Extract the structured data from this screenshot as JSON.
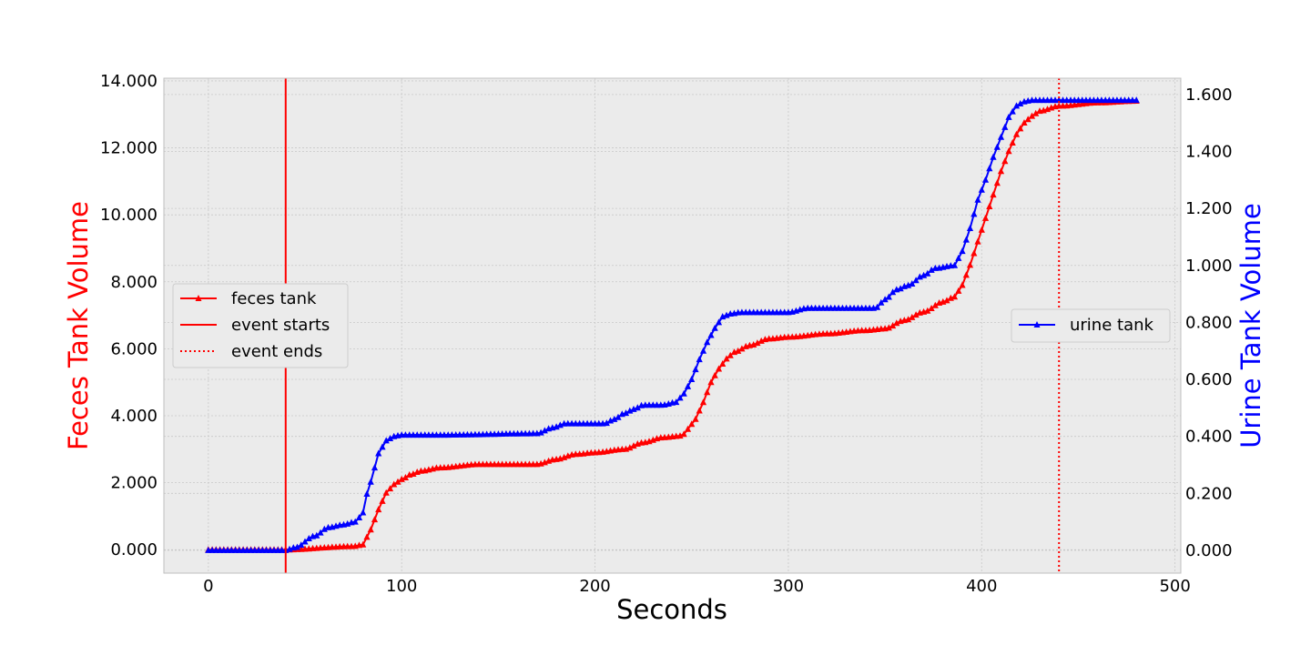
{
  "chart_data": {
    "type": "line",
    "title": "",
    "xlabel": "Seconds",
    "ylabel_left": "Feces Tank Volume",
    "ylabel_right": "Urine Tank Volume",
    "xlim": [
      -23,
      503
    ],
    "ylim_left": [
      -0.7,
      14.08
    ],
    "ylim_right": [
      -0.08,
      1.657
    ],
    "xticks": [
      0,
      100,
      200,
      300,
      400,
      500
    ],
    "xtick_labels": [
      "0",
      "100",
      "200",
      "300",
      "400",
      "500"
    ],
    "yticks_left": [
      0,
      2,
      4,
      6,
      8,
      10,
      12,
      14
    ],
    "ytick_labels_left": [
      "0.000",
      "2.000",
      "4.000",
      "6.000",
      "8.000",
      "10.000",
      "12.000",
      "14.000"
    ],
    "yticks_right": [
      0,
      0.2,
      0.4,
      0.6,
      0.8,
      1.0,
      1.2,
      1.4,
      1.6
    ],
    "ytick_labels_right": [
      "0.000",
      "0.200",
      "0.400",
      "0.600",
      "0.800",
      "1.000",
      "1.200",
      "1.400",
      "1.600"
    ],
    "grid": true,
    "colors": {
      "feces": "#ff0000",
      "urine": "#0000ff",
      "background": "#ebebeb",
      "grid": "#c8c8c8"
    },
    "series": [
      {
        "name": "feces tank",
        "axis": "left",
        "marker": "triangle-up",
        "step": 2,
        "x": [
          0,
          40,
          75,
          80,
          84,
          88,
          92,
          96,
          100,
          105,
          110,
          120,
          140,
          170,
          180,
          190,
          200,
          215,
          225,
          235,
          245,
          248,
          252,
          256,
          260,
          264,
          268,
          272,
          280,
          290,
          300,
          320,
          340,
          350,
          360,
          370,
          380,
          386,
          390,
          394,
          398,
          402,
          406,
          410,
          414,
          418,
          422,
          426,
          430,
          440,
          460,
          480
        ],
        "values": [
          0,
          0,
          0.1,
          0.15,
          0.6,
          1.2,
          1.7,
          1.95,
          2.1,
          2.25,
          2.35,
          2.45,
          2.55,
          2.55,
          2.7,
          2.85,
          2.9,
          3.0,
          3.2,
          3.35,
          3.4,
          3.6,
          3.9,
          4.4,
          5.0,
          5.4,
          5.7,
          5.9,
          6.1,
          6.3,
          6.35,
          6.45,
          6.55,
          6.6,
          6.85,
          7.1,
          7.4,
          7.55,
          7.9,
          8.5,
          9.2,
          9.9,
          10.6,
          11.3,
          11.9,
          12.4,
          12.75,
          12.95,
          13.1,
          13.25,
          13.35,
          13.4
        ]
      },
      {
        "name": "urine tank",
        "axis": "right",
        "marker": "triangle-up",
        "step": 2,
        "x": [
          0,
          40,
          45,
          55,
          62,
          70,
          76,
          79,
          84,
          88,
          92,
          96,
          100,
          120,
          170,
          178,
          185,
          205,
          210,
          215,
          220,
          225,
          235,
          242,
          246,
          250,
          254,
          258,
          262,
          266,
          270,
          275,
          300,
          310,
          320,
          345,
          350,
          356,
          362,
          370,
          376,
          386,
          390,
          394,
          398,
          402,
          406,
          410,
          414,
          418,
          422,
          426,
          430,
          440,
          460,
          480
        ],
        "values": [
          0,
          0,
          0.01,
          0.05,
          0.08,
          0.09,
          0.1,
          0.12,
          0.24,
          0.34,
          0.385,
          0.4,
          0.405,
          0.405,
          0.41,
          0.43,
          0.445,
          0.445,
          0.46,
          0.48,
          0.495,
          0.51,
          0.51,
          0.52,
          0.55,
          0.6,
          0.67,
          0.73,
          0.78,
          0.82,
          0.83,
          0.835,
          0.835,
          0.85,
          0.85,
          0.85,
          0.88,
          0.915,
          0.93,
          0.965,
          0.99,
          1.0,
          1.05,
          1.13,
          1.23,
          1.3,
          1.38,
          1.45,
          1.52,
          1.56,
          1.575,
          1.58,
          1.58,
          1.58,
          1.58,
          1.58
        ]
      }
    ],
    "vlines": [
      {
        "name": "event starts",
        "x": 40,
        "style": "solid"
      },
      {
        "name": "event ends",
        "x": 440,
        "style": "dotted"
      }
    ],
    "legends": [
      {
        "placement": "center-left",
        "entries": [
          "feces tank",
          "event starts",
          "event ends"
        ]
      },
      {
        "placement": "center-right",
        "entries": [
          "urine tank"
        ]
      }
    ]
  }
}
